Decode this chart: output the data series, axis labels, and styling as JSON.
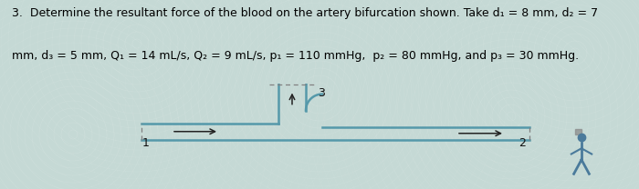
{
  "title_line1": "3.  Determine the resultant force of the blood on the artery bifurcation shown. Take d₁ = 8 mm, d₂ = 7",
  "title_line2": "mm, d₃ = 5 mm, Q₁ = 14 mL/s, Q₂ = 9 mL/s, p₁ = 110 mmHg,  p₂ = 80 mmHg, and p₃ = 30 mmHg.",
  "bg_color": "#c5d9d5",
  "pipe_color": "#5599aa",
  "pipe_lw": 1.8,
  "arrow_color": "#222222",
  "label_color": "#111111",
  "label_fontsize": 9,
  "text_fontsize": 9.0,
  "fig_width": 7.0,
  "fig_height": 2.08,
  "dpi": 100
}
